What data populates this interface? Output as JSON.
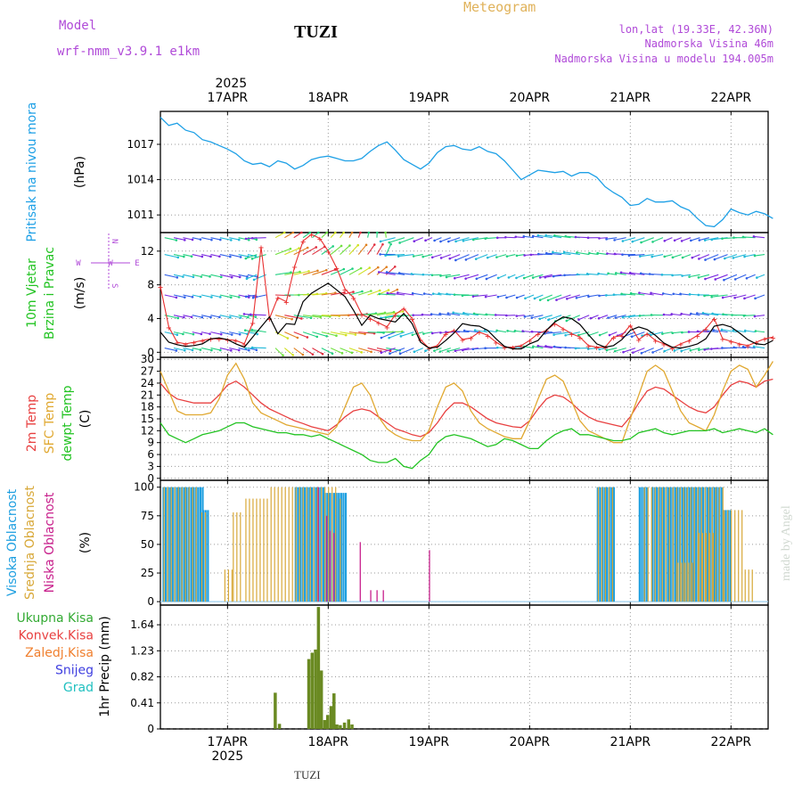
{
  "header": {
    "model_label": "Model",
    "model_name": "wrf-nmm_v3.9.1  e1km",
    "station": "TUZI",
    "product": "Meteogram",
    "lonlat": "lon,lat (19.33E, 42.36N)",
    "elevation": "Nadmorska Visina 46m",
    "model_elevation": "Nadmorska Visina u modelu 194.005m"
  },
  "footer": {
    "station": "TUZI",
    "credit": "made by Angel"
  },
  "colors": {
    "pressure": "#1ea0e6",
    "wind_speed": "#000000",
    "wind_gust": "#e83030",
    "t2m": "#e84040",
    "sfc": "#e0a830",
    "dewpt": "#22c322",
    "cloud_high": "#1e9fe0",
    "cloud_mid": "#d8a838",
    "cloud_low": "#c8208c",
    "precip_total": "#6a8a22",
    "grid": "#9a9a9a"
  },
  "time_axis": {
    "year": "2025",
    "top_labels": [
      "17APR",
      "18APR",
      "19APR",
      "20APR",
      "21APR",
      "22APR"
    ],
    "bottom_labels": [
      "17APR",
      "18APR",
      "19APR",
      "20APR",
      "21APR",
      "22APR"
    ],
    "start_hour_offset": 8,
    "total_hours": 146
  },
  "chart_data": [
    {
      "type": "line",
      "id": "pressure",
      "ylabel_left": "Pritisak na nivou mora",
      "unit": "(hPa)",
      "yticks": [
        "1011",
        "1014",
        "1017"
      ],
      "ylim": [
        1009.5,
        1019.8
      ],
      "x_hours": [
        8,
        10,
        12,
        14,
        16,
        18,
        20,
        22,
        24,
        26,
        28,
        30,
        32,
        34,
        36,
        38,
        40,
        42,
        44,
        46,
        48,
        50,
        52,
        54,
        56,
        58,
        60,
        62,
        64,
        66,
        68,
        70,
        72,
        74,
        76,
        78,
        80,
        82,
        84,
        86,
        88,
        90,
        92,
        94,
        96,
        98,
        100,
        102,
        104,
        106,
        108,
        110,
        112,
        114,
        116,
        118,
        120,
        122,
        124,
        126,
        128,
        130,
        132,
        134,
        136,
        138,
        140,
        142,
        144,
        146,
        148,
        150,
        152,
        154
      ],
      "series": [
        {
          "values": [
            1019.3,
            1018.6,
            1018.8,
            1018.2,
            1018.0,
            1017.4,
            1017.2,
            1016.9,
            1016.6,
            1016.2,
            1015.6,
            1015.3,
            1015.4,
            1015.1,
            1015.6,
            1015.4,
            1014.9,
            1015.2,
            1015.7,
            1015.9,
            1016.0,
            1015.8,
            1015.6,
            1015.6,
            1015.8,
            1016.4,
            1016.9,
            1017.2,
            1016.5,
            1015.7,
            1015.3,
            1014.9,
            1015.4,
            1016.3,
            1016.8,
            1016.9,
            1016.6,
            1016.5,
            1016.8,
            1016.4,
            1016.2,
            1015.6,
            1014.8,
            1014.0,
            1014.4,
            1014.8,
            1014.7,
            1014.6,
            1014.7,
            1014.3,
            1014.6,
            1014.6,
            1014.2,
            1013.4,
            1012.9,
            1012.5,
            1011.8,
            1011.9,
            1012.4,
            1012.1,
            1012.1,
            1012.2,
            1011.7,
            1011.4,
            1010.7,
            1010.1,
            1010.0,
            1010.6,
            1011.5,
            1011.2,
            1011.0,
            1011.3,
            1011.1,
            1010.7
          ]
        }
      ]
    },
    {
      "type": "line",
      "id": "wind",
      "ylabel_left": [
        "10m Vjetar",
        "Brzina i Pravac"
      ],
      "unit": "(m/s)",
      "yticks": [
        "0",
        "4",
        "8",
        "12"
      ],
      "ylim": [
        -0.6,
        14.2
      ],
      "compass": {
        "n": "N",
        "e": "E",
        "w": "W",
        "s": "S"
      },
      "x_hours": [
        8,
        10,
        12,
        14,
        16,
        18,
        20,
        22,
        24,
        26,
        28,
        30,
        32,
        34,
        36,
        38,
        40,
        42,
        44,
        46,
        48,
        50,
        52,
        54,
        56,
        58,
        60,
        62,
        64,
        66,
        68,
        70,
        72,
        74,
        76,
        78,
        80,
        82,
        84,
        86,
        88,
        90,
        92,
        94,
        96,
        98,
        100,
        102,
        104,
        106,
        108,
        110,
        112,
        114,
        116,
        118,
        120,
        122,
        124,
        126,
        128,
        130,
        132,
        134,
        136,
        138,
        140,
        142,
        144,
        146,
        148,
        150,
        152,
        154
      ],
      "series": [
        {
          "name": "speed",
          "values": [
            2.4,
            1.2,
            0.9,
            0.7,
            0.8,
            1.0,
            1.6,
            1.7,
            1.5,
            1.0,
            0.6,
            1.8,
            3.0,
            4.2,
            2.2,
            3.4,
            3.3,
            6.0,
            7.0,
            7.6,
            8.2,
            7.4,
            6.6,
            5.0,
            3.2,
            4.4,
            4.0,
            3.8,
            3.6,
            4.6,
            3.4,
            1.2,
            0.5,
            0.6,
            1.4,
            2.3,
            3.4,
            3.2,
            3.1,
            2.6,
            1.6,
            0.7,
            0.4,
            0.4,
            1.0,
            1.4,
            2.6,
            3.6,
            4.2,
            4.0,
            3.3,
            2.1,
            1.0,
            0.6,
            0.8,
            1.5,
            2.6,
            3.0,
            2.7,
            2.0,
            1.1,
            0.6,
            0.5,
            0.7,
            1.0,
            1.6,
            3.1,
            3.3,
            3.0,
            2.3,
            1.5,
            1.0,
            0.9,
            1.4
          ]
        },
        {
          "name": "gust",
          "values": [
            7.8,
            3.0,
            1.2,
            1.0,
            1.2,
            1.4,
            1.6,
            1.6,
            1.5,
            1.4,
            1.0,
            3.5,
            12.5,
            4.0,
            6.5,
            6.0,
            10.2,
            13.2,
            14.0,
            13.5,
            12.0,
            10.0,
            7.5,
            6.5,
            4.5,
            4.0,
            3.5,
            3.0,
            4.5,
            5.2,
            4.0,
            1.5,
            0.5,
            0.8,
            2.2,
            2.6,
            1.5,
            1.7,
            2.4,
            2.0,
            1.2,
            0.6,
            0.6,
            0.8,
            1.4,
            2.2,
            2.6,
            3.4,
            2.8,
            2.2,
            1.8,
            0.8,
            0.6,
            0.6,
            1.8,
            2.0,
            3.2,
            1.5,
            2.2,
            1.4,
            1.0,
            0.5,
            1.0,
            1.4,
            2.0,
            2.8,
            4.0,
            1.6,
            1.3,
            1.0,
            0.8,
            1.2,
            1.6,
            1.8
          ]
        }
      ]
    },
    {
      "type": "line",
      "id": "temperature",
      "ylabel_left": [
        "2m Temp",
        "SFC Temp",
        "dewpt Temp"
      ],
      "unit": "(C)",
      "yticks": [
        "0",
        "3",
        "6",
        "9",
        "12",
        "15",
        "18",
        "21",
        "24",
        "27",
        "30"
      ],
      "ylim": [
        -0.5,
        30.5
      ],
      "x_hours": [
        8,
        10,
        12,
        14,
        16,
        18,
        20,
        22,
        24,
        26,
        28,
        30,
        32,
        34,
        36,
        38,
        40,
        42,
        44,
        46,
        48,
        50,
        52,
        54,
        56,
        58,
        60,
        62,
        64,
        66,
        68,
        70,
        72,
        74,
        76,
        78,
        80,
        82,
        84,
        86,
        88,
        90,
        92,
        94,
        96,
        98,
        100,
        102,
        104,
        106,
        108,
        110,
        112,
        114,
        116,
        118,
        120,
        122,
        124,
        126,
        128,
        130,
        132,
        134,
        136,
        138,
        140,
        142,
        144,
        146,
        148,
        150,
        152,
        154
      ],
      "series": [
        {
          "name": "2m",
          "values": [
            24.0,
            21.5,
            20.0,
            19.5,
            19.0,
            19.0,
            19.0,
            21.0,
            23.5,
            24.5,
            23.0,
            21.0,
            19.0,
            17.5,
            16.5,
            15.5,
            14.5,
            13.8,
            13.0,
            12.5,
            12.0,
            13.5,
            15.5,
            17.0,
            17.5,
            17.0,
            15.5,
            14.0,
            12.5,
            11.8,
            11.0,
            10.5,
            11.5,
            14.0,
            17.0,
            19.0,
            19.0,
            18.0,
            16.5,
            15.0,
            14.0,
            13.5,
            13.0,
            12.8,
            14.5,
            17.5,
            20.0,
            21.0,
            20.5,
            19.0,
            17.0,
            15.5,
            14.5,
            14.0,
            13.5,
            13.0,
            15.5,
            19.0,
            22.0,
            23.0,
            22.5,
            21.0,
            19.5,
            18.0,
            17.0,
            16.5,
            18.0,
            21.0,
            23.5,
            24.5,
            24.0,
            23.0,
            24.5,
            25.0
          ]
        },
        {
          "name": "sfc",
          "values": [
            27.0,
            22.0,
            17.0,
            16.0,
            16.0,
            16.0,
            16.5,
            20.0,
            26.0,
            29.0,
            25.0,
            19.0,
            16.5,
            15.5,
            14.5,
            13.5,
            13.0,
            12.5,
            12.0,
            11.5,
            11.0,
            13.0,
            18.0,
            23.0,
            24.0,
            21.0,
            15.5,
            12.5,
            11.0,
            10.0,
            9.5,
            9.5,
            12.0,
            18.0,
            23.0,
            24.0,
            22.0,
            17.0,
            14.0,
            12.5,
            11.5,
            10.5,
            10.0,
            10.0,
            14.5,
            20.0,
            25.0,
            26.0,
            24.5,
            19.5,
            14.5,
            12.0,
            11.0,
            10.0,
            9.0,
            9.0,
            15.0,
            21.0,
            27.0,
            28.5,
            27.0,
            22.0,
            17.0,
            14.0,
            13.0,
            12.0,
            16.0,
            22.0,
            27.0,
            28.5,
            27.5,
            23.0,
            26.0,
            29.5
          ]
        },
        {
          "name": "dewpt",
          "values": [
            14.0,
            11.0,
            10.0,
            9.0,
            10.0,
            11.0,
            11.5,
            12.0,
            13.0,
            14.0,
            14.0,
            13.0,
            12.5,
            12.0,
            11.5,
            11.5,
            11.0,
            11.0,
            10.5,
            11.0,
            10.0,
            9.0,
            8.0,
            7.0,
            6.0,
            4.5,
            4.0,
            4.0,
            5.0,
            3.0,
            2.5,
            4.5,
            6.0,
            9.0,
            10.5,
            11.0,
            10.5,
            10.0,
            9.0,
            8.0,
            8.5,
            10.0,
            9.5,
            8.5,
            7.5,
            7.5,
            9.5,
            11.0,
            12.0,
            12.5,
            11.0,
            11.0,
            10.5,
            10.0,
            9.5,
            9.5,
            10.0,
            11.5,
            12.0,
            12.5,
            11.5,
            11.0,
            11.5,
            12.0,
            12.0,
            12.0,
            12.5,
            11.5,
            12.0,
            12.5,
            12.0,
            11.5,
            12.5,
            11.0
          ]
        }
      ]
    },
    {
      "type": "bar",
      "id": "clouds",
      "ylabel_left": [
        "Visoka Oblacnost",
        "Srednja Oblacnost",
        "Niska Oblacnost"
      ],
      "unit": "(%)",
      "yticks": [
        "0",
        "25",
        "50",
        "75",
        "100"
      ],
      "ylim": [
        -3,
        106
      ],
      "series": [
        {
          "name": "high",
          "segments": [
            [
              8.5,
              18,
              100
            ],
            [
              18,
              19.5,
              80
            ],
            [
              40,
              47,
              100
            ],
            [
              47,
              52,
              95
            ],
            [
              112,
              116,
              100
            ],
            [
              122,
              124,
              100
            ],
            [
              125,
              142,
              100
            ],
            [
              142,
              144,
              80
            ]
          ]
        },
        {
          "name": "mid",
          "segments": [
            [
              8.5,
              17,
              100
            ],
            [
              17.5,
              19,
              78
            ],
            [
              23,
              25,
              28
            ],
            [
              25,
              27,
              78
            ],
            [
              28,
              34,
              90
            ],
            [
              34,
              46,
              100
            ],
            [
              46,
              50,
              100
            ],
            [
              50.5,
              51.5,
              90
            ],
            [
              112,
              116,
              100
            ],
            [
              123,
              142,
              100
            ],
            [
              131,
              135,
              34
            ],
            [
              136,
              140,
              60
            ],
            [
              142,
              147,
              80
            ],
            [
              147,
              149,
              28
            ]
          ]
        },
        {
          "name": "low",
          "bars": [
            [
              45.5,
              100
            ],
            [
              47.5,
              75
            ],
            [
              48.3,
              62
            ],
            [
              49.2,
              60
            ],
            [
              55.5,
              52
            ],
            [
              58,
              10
            ],
            [
              59.5,
              10
            ],
            [
              61,
              10
            ],
            [
              72,
              45
            ]
          ]
        }
      ]
    },
    {
      "type": "bar",
      "id": "precip",
      "ylabel_left": "1hr Precip (mm)",
      "legend": [
        "Ukupna Kisa",
        "Konvek.Kisa",
        "Zaledj.Kisa",
        "Snijeg",
        "Grad"
      ],
      "legend_colors": [
        "#33aa33",
        "#e84040",
        "#f08030",
        "#4040e0",
        "#20c0c0"
      ],
      "yticks": [
        "0",
        "0.41",
        "0.82",
        "1.23",
        "1.64"
      ],
      "ylim": [
        0,
        1.95
      ],
      "x_hours": [
        35,
        36,
        43,
        43.8,
        44.6,
        45.3,
        46,
        46.8,
        47.5,
        48.3,
        49,
        49.7,
        50.5,
        51.5,
        52.5,
        53.3
      ],
      "values": [
        0.57,
        0.08,
        1.1,
        1.2,
        1.25,
        1.92,
        0.92,
        0.14,
        0.22,
        0.36,
        0.56,
        0.07,
        0.06,
        0.1,
        0.15,
        0.07
      ]
    }
  ]
}
